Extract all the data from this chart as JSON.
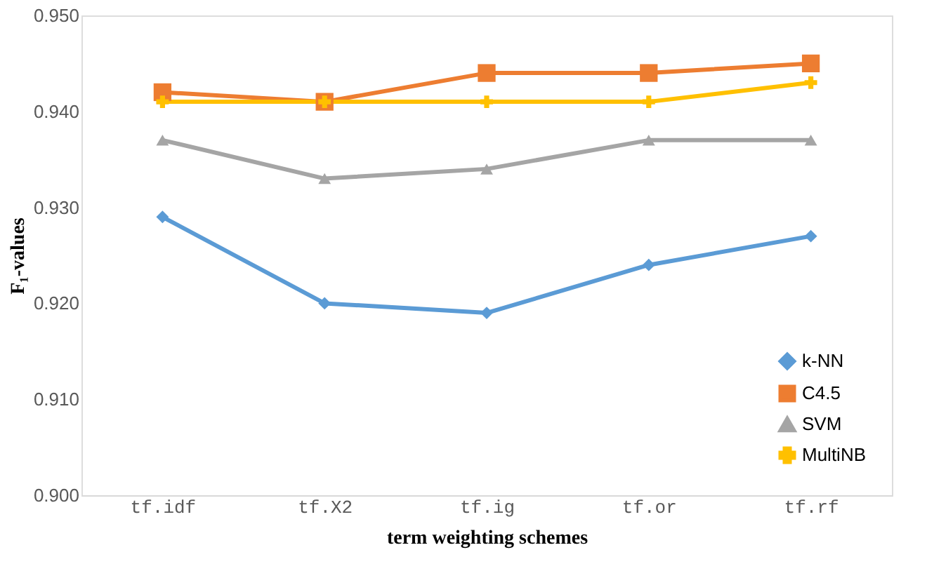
{
  "chart_data": {
    "type": "line",
    "xlabel": "term weighting schemes",
    "ylabel": "F₁-values",
    "categories": [
      "tf.idf",
      "tf.X2",
      "tf.ig",
      "tf.or",
      "tf.rf"
    ],
    "series": [
      {
        "name": "k-NN",
        "color": "#5b9bd5",
        "marker": "diamond",
        "values": [
          0.929,
          0.92,
          0.919,
          0.924,
          0.927
        ]
      },
      {
        "name": "C4.5",
        "color": "#ed7d31",
        "marker": "square",
        "values": [
          0.942,
          0.941,
          0.944,
          0.944,
          0.945
        ]
      },
      {
        "name": "SVM",
        "color": "#a5a5a5",
        "marker": "triangle",
        "values": [
          0.937,
          0.933,
          0.934,
          0.937,
          0.937
        ]
      },
      {
        "name": "MultiNB",
        "color": "#ffc000",
        "marker": "cross",
        "values": [
          0.941,
          0.941,
          0.941,
          0.941,
          0.943
        ]
      }
    ],
    "ylim": [
      0.9,
      0.95
    ],
    "yticks": [
      {
        "value": 0.9,
        "label": "0.900"
      },
      {
        "value": 0.91,
        "label": "0.910"
      },
      {
        "value": 0.92,
        "label": "0.920"
      },
      {
        "value": 0.93,
        "label": "0.930"
      },
      {
        "value": 0.94,
        "label": "0.940"
      },
      {
        "value": 0.95,
        "label": "0.950"
      }
    ],
    "grid": false,
    "legend": "bottom right",
    "line_style": "solid"
  }
}
